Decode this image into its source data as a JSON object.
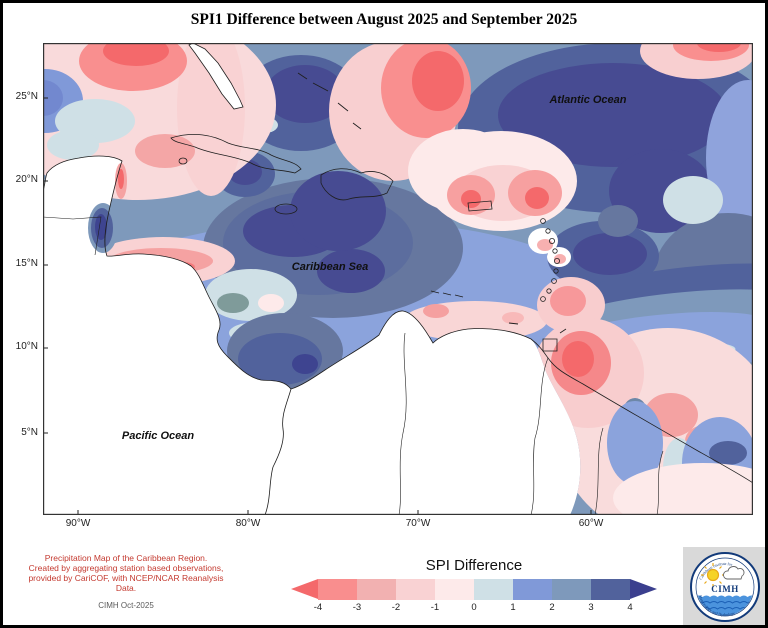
{
  "title": "SPI1 Difference between August 2025 and September 2025",
  "map": {
    "labels": {
      "atlantic": "Atlantic Ocean",
      "caribbean": "Caribbean Sea",
      "pacific": "Pacific Ocean"
    },
    "lat_ticks": [
      "25°N",
      "20°N",
      "15°N",
      "10°N",
      "5°N"
    ],
    "lon_ticks": [
      "90°W",
      "80°W",
      "70°W",
      "60°W"
    ]
  },
  "legend": {
    "title": "SPI Difference",
    "tick_labels": [
      "-4",
      "-3",
      "-2",
      "-1",
      "0",
      "1",
      "2",
      "3",
      "4"
    ],
    "segment_colors": [
      "#f98e8e",
      "#f2b1b1",
      "#f9d2d3",
      "#fdeaea",
      "#cfe0e6",
      "#8099d8",
      "#7e99bb",
      "#51629c"
    ],
    "arrow_left_color": "#f4696b",
    "arrow_right_color": "#3b3f8e"
  },
  "credits": {
    "line1": "Precipitation Map of the Caribbean Region.",
    "line2": "Created by aggregating station based observations,",
    "line3": "provided by CariCOF, with NCEP/NCAR Reanalysis Data.",
    "stamp": "CIMH Oct-2025"
  },
  "logo": {
    "acronym": "CIMH",
    "ring_text_top": "Caribbean Institute for",
    "ring_text_bottom": "Meteorology and Hydrology"
  },
  "palette": {
    "spi_minus4": "#f4696b",
    "spi_minus3": "#f98e8e",
    "spi_minus2": "#f2b1b1",
    "spi_minus1": "#f9d2d3",
    "spi_zero_neg": "#fdeaea",
    "spi_zero_pos": "#cfe0e6",
    "spi_plus1": "#8099d8",
    "spi_plus2": "#7e99bb",
    "spi_plus3": "#51629c",
    "spi_plus4": "#474b92",
    "land": "#ffffff",
    "coastline": "#1f1f1f"
  }
}
